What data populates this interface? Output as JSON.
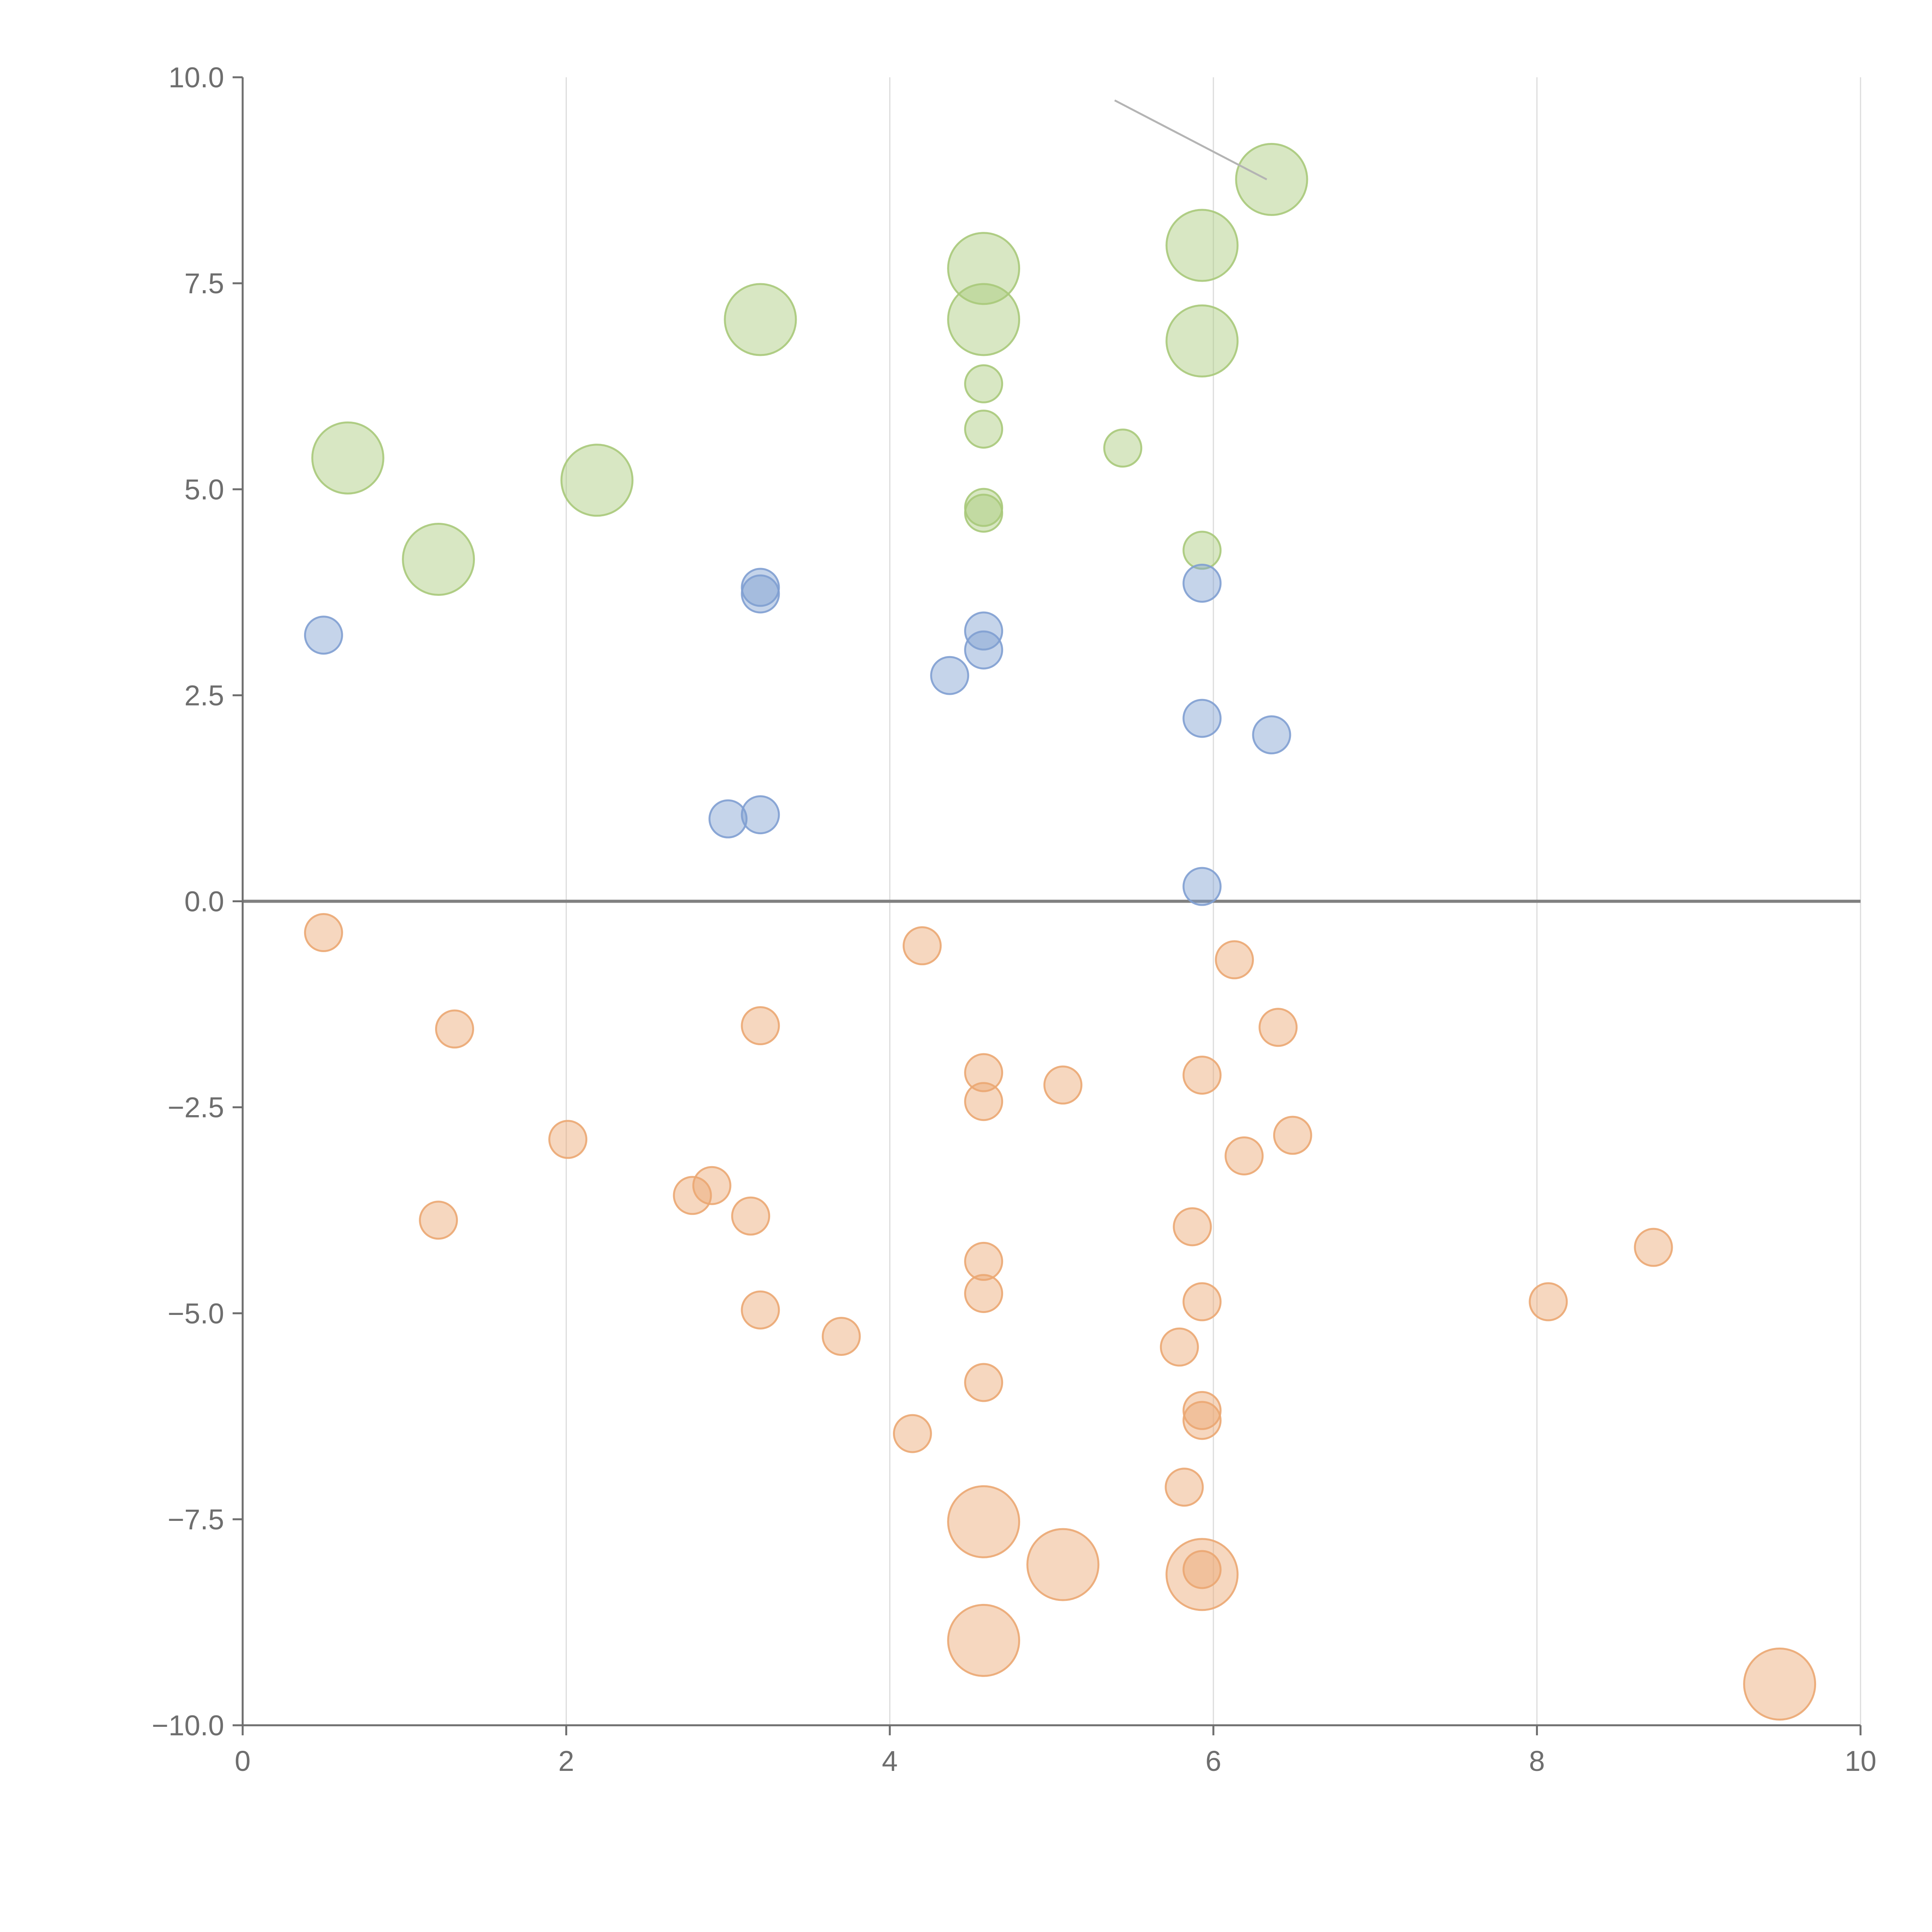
{
  "chart_data": {
    "type": "scatter",
    "title": "",
    "xlabel": "",
    "ylabel": "",
    "xlim": [
      0,
      10
    ],
    "ylim": [
      -10,
      10
    ],
    "x_ticks": [
      "0",
      "2",
      "4",
      "6",
      "8",
      "10"
    ],
    "y_ticks": [
      "10.0",
      "7.5",
      "5.0",
      "2.5",
      "0.0",
      "−2.5",
      "−5.0",
      "−7.5",
      "−10.0"
    ],
    "x_tick_values": [
      0,
      2,
      4,
      6,
      8,
      10
    ],
    "y_tick_values": [
      10,
      7.5,
      5,
      2.5,
      0,
      -2.5,
      -5,
      -7.5,
      -10
    ],
    "grid": {
      "vertical": true,
      "horizontal": false
    },
    "zero_line": true,
    "colors": {
      "green": "#a9c97a",
      "blue": "#7f9fd1",
      "orange": "#eba772",
      "grid": "#dcdcdc",
      "axis": "#6e6e6e",
      "zero_line": "#808080",
      "annotation_line": "#b4b4b4"
    },
    "series": [
      {
        "name": "green",
        "color": "#a9c97a",
        "points": [
          [
            0.65,
            5.38,
            2
          ],
          [
            1.21,
            4.15,
            2
          ],
          [
            2.19,
            5.11,
            2
          ],
          [
            3.2,
            7.06,
            2
          ],
          [
            4.58,
            7.68,
            2
          ],
          [
            4.58,
            7.06,
            2
          ],
          [
            4.58,
            6.28,
            1
          ],
          [
            4.58,
            5.73,
            1
          ],
          [
            4.58,
            4.78,
            1
          ],
          [
            4.58,
            4.71,
            1
          ],
          [
            5.44,
            5.5,
            1
          ],
          [
            5.93,
            7.96,
            2
          ],
          [
            5.93,
            6.8,
            2
          ],
          [
            5.93,
            4.26,
            1
          ],
          [
            6.36,
            8.76,
            2
          ]
        ]
      },
      {
        "name": "blue",
        "color": "#7f9fd1",
        "points": [
          [
            0.5,
            3.23,
            1
          ],
          [
            3.0,
            1.0,
            1
          ],
          [
            3.2,
            1.05,
            1
          ],
          [
            3.2,
            3.81,
            1
          ],
          [
            3.2,
            3.73,
            1
          ],
          [
            4.37,
            2.74,
            1
          ],
          [
            4.58,
            3.28,
            1
          ],
          [
            4.58,
            3.05,
            1
          ],
          [
            5.93,
            3.86,
            1
          ],
          [
            5.93,
            2.22,
            1
          ],
          [
            5.93,
            0.18,
            1
          ],
          [
            6.36,
            2.02,
            1
          ]
        ]
      },
      {
        "name": "orange",
        "color": "#eba772",
        "points": [
          [
            0.5,
            -0.38,
            1
          ],
          [
            1.31,
            -1.55,
            1
          ],
          [
            1.21,
            -3.87,
            1
          ],
          [
            2.01,
            -2.89,
            1
          ],
          [
            2.78,
            -3.57,
            1
          ],
          [
            2.9,
            -3.45,
            1
          ],
          [
            3.14,
            -3.82,
            1
          ],
          [
            3.2,
            -1.51,
            1
          ],
          [
            3.2,
            -4.96,
            1
          ],
          [
            3.7,
            -5.28,
            1
          ],
          [
            4.14,
            -6.46,
            1
          ],
          [
            4.2,
            -0.54,
            1
          ],
          [
            4.58,
            -2.08,
            1
          ],
          [
            4.58,
            -2.43,
            1
          ],
          [
            4.58,
            -4.37,
            1
          ],
          [
            4.58,
            -4.76,
            1
          ],
          [
            4.58,
            -5.84,
            1
          ],
          [
            4.58,
            -7.53,
            2
          ],
          [
            4.58,
            -8.97,
            2
          ],
          [
            5.07,
            -2.23,
            1
          ],
          [
            5.07,
            -8.05,
            2
          ],
          [
            5.79,
            -5.41,
            1
          ],
          [
            5.82,
            -7.11,
            1
          ],
          [
            5.87,
            -3.95,
            1
          ],
          [
            5.93,
            -2.11,
            1
          ],
          [
            5.93,
            -4.86,
            1
          ],
          [
            5.93,
            -6.18,
            1
          ],
          [
            5.93,
            -6.3,
            1
          ],
          [
            5.93,
            -8.11,
            1
          ],
          [
            5.93,
            -8.17,
            2
          ],
          [
            6.13,
            -0.71,
            1
          ],
          [
            6.19,
            -3.09,
            1
          ],
          [
            6.4,
            -1.53,
            1
          ],
          [
            6.49,
            -2.84,
            1
          ],
          [
            8.07,
            -4.86,
            1
          ],
          [
            8.72,
            -4.2,
            1
          ],
          [
            9.5,
            -9.5,
            2
          ]
        ]
      }
    ],
    "annotation": {
      "description": "pointer line to top-right green bubble",
      "from": [
        5.39,
        9.72
      ],
      "to": [
        6.33,
        8.76
      ]
    }
  }
}
